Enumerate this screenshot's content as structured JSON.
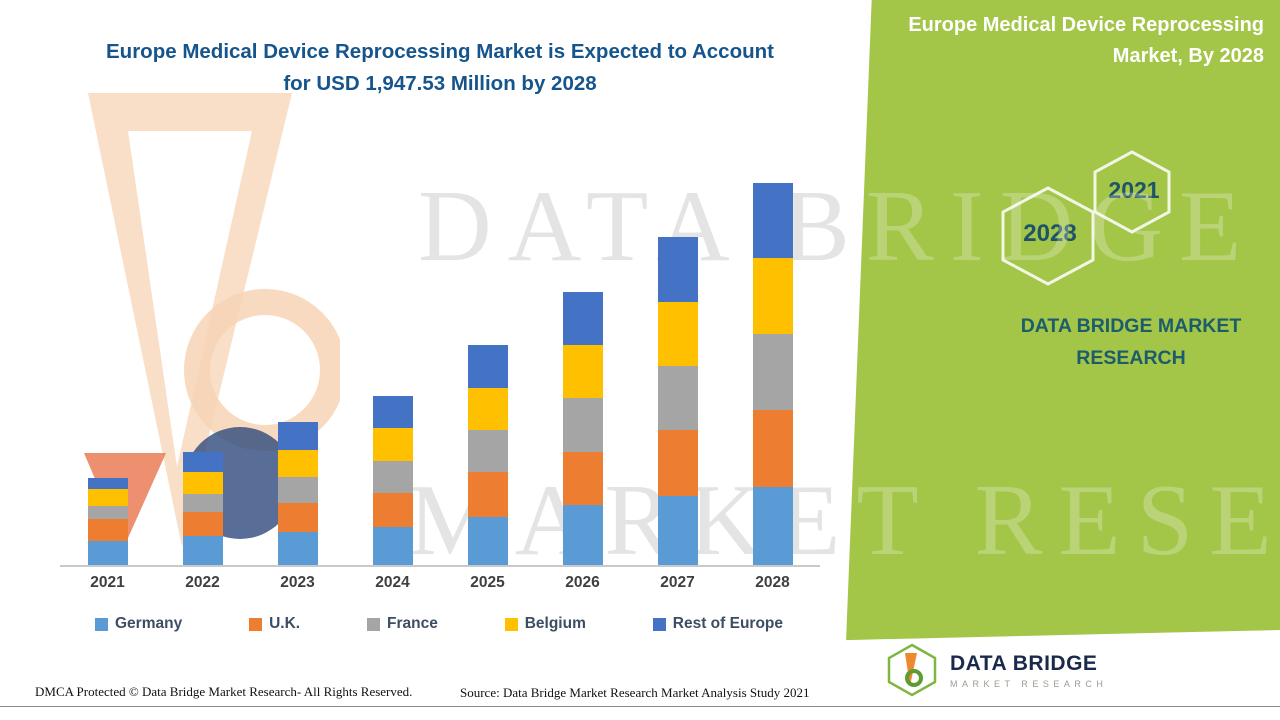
{
  "header": {
    "title_line1": "Europe Medical Device Reprocessing Market is Expected to Account",
    "title_line2": "for USD 1,947.53 Million by 2028"
  },
  "chart_data": {
    "type": "bar",
    "stacked": true,
    "title": "Europe Medical Device Reprocessing Market is Expected to Account for USD 1,947.53 Million by 2028",
    "categories": [
      "2021",
      "2022",
      "2023",
      "2024",
      "2025",
      "2026",
      "2027",
      "2028"
    ],
    "series": [
      {
        "name": "Germany",
        "color": "#5B9BD5",
        "values": [
          24,
          29,
          33,
          38,
          48,
          60,
          69,
          78
        ]
      },
      {
        "name": "U.K.",
        "color": "#ED7D31",
        "values": [
          22,
          24,
          29,
          34,
          45,
          53,
          66,
          77
        ]
      },
      {
        "name": "France",
        "color": "#A5A5A5",
        "values": [
          13,
          18,
          26,
          32,
          42,
          54,
          64,
          76
        ]
      },
      {
        "name": "Belgium",
        "color": "#FFC000",
        "values": [
          17,
          22,
          27,
          33,
          42,
          53,
          64,
          76
        ]
      },
      {
        "name": "Rest of Europe",
        "color": "#4472C4",
        "values": [
          11,
          20,
          28,
          32,
          43,
          53,
          65,
          75
        ]
      }
    ],
    "value_units": "relative height units (no y-axis values shown in image)",
    "xlabel": "",
    "ylabel": "",
    "ylim": [
      0,
      400
    ],
    "grid": false,
    "legend_position": "bottom"
  },
  "panel": {
    "bg_color": "#A3C548",
    "title_line1": "Europe Medical Device Reprocessing",
    "title_line2": "Market, By 2028",
    "hex_2028": "2028",
    "hex_2021": "2021",
    "brand": "DATA BRIDGE MARKET RESEARCH"
  },
  "watermark": {
    "line1": "DATA BRIDGE",
    "line2": "MARKET RESEARCH"
  },
  "logo": {
    "name": "DATA BRIDGE",
    "sub": "MARKET RESEARCH"
  },
  "footer": {
    "left": "DMCA Protected © Data Bridge Market Research- All Rights Reserved.",
    "source": "Source: Data Bridge Market Research Market Analysis Study 2021"
  },
  "colors": {
    "title_text": "#16558C",
    "panel_green": "#A3C548",
    "hex_year_text": "#1F5368",
    "legend_text": "#3D4D63",
    "axis_label_text": "#3F3F3F"
  }
}
